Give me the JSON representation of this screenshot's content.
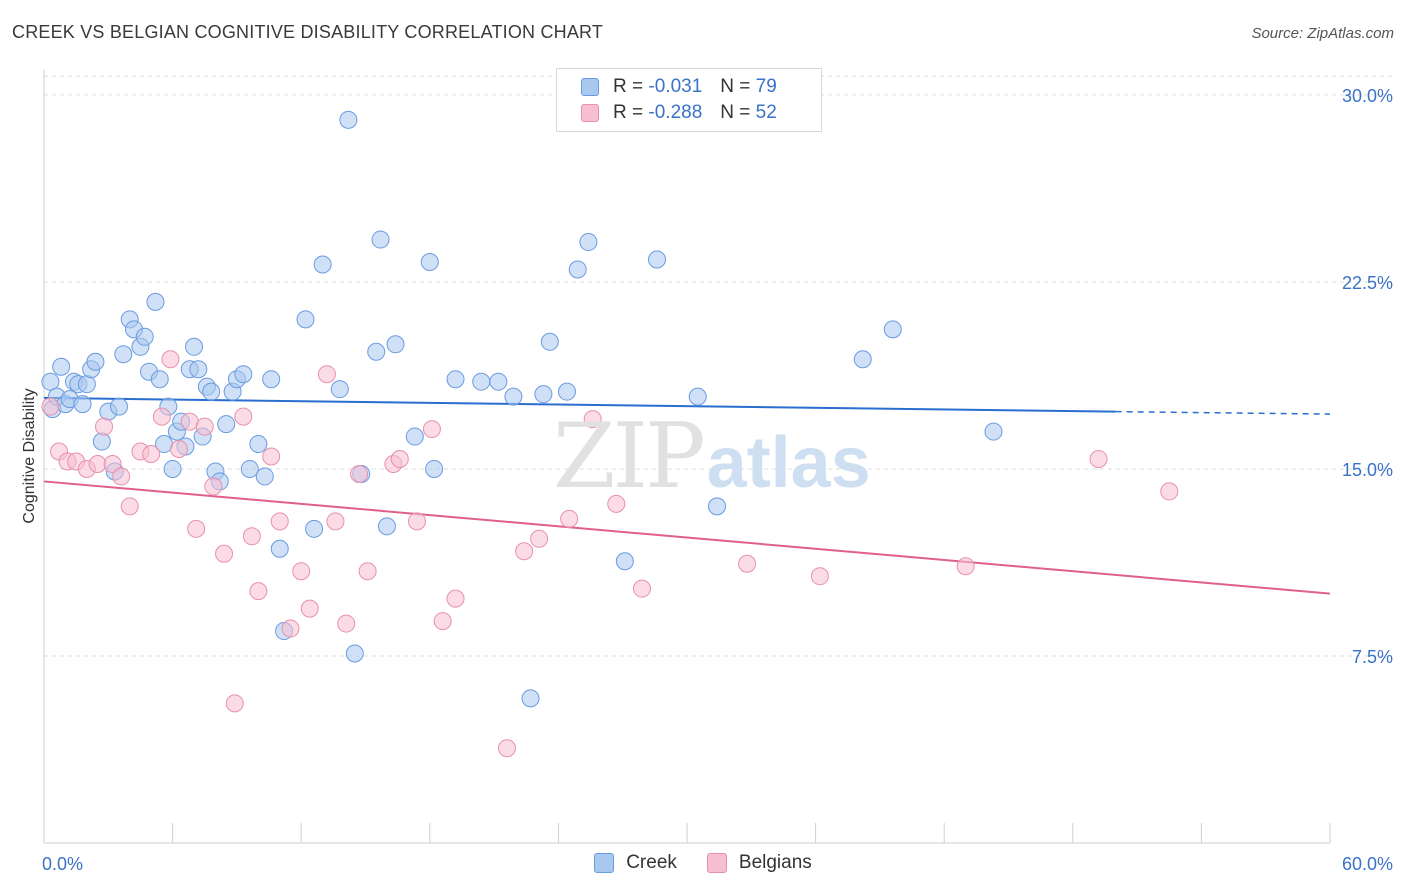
{
  "title": "CREEK VS BELGIAN COGNITIVE DISABILITY CORRELATION CHART",
  "source": "Source: ZipAtlas.com",
  "watermark": {
    "zip": "ZIP",
    "atlas": "atlas"
  },
  "legend": {
    "rows": [
      {
        "r_label": "R =",
        "r_value": "-0.031",
        "n_label": "N =",
        "n_value": "79",
        "color": "#a9c8f0",
        "stroke": "#6a9be0"
      },
      {
        "r_label": "R =",
        "r_value": "-0.288",
        "n_label": "N =",
        "n_value": "52",
        "color": "#f7bfd1",
        "stroke": "#e890ae"
      }
    ],
    "series_labels": [
      "Creek",
      "Belgians"
    ]
  },
  "chart_data": {
    "type": "scatter",
    "title": "CREEK VS BELGIAN COGNITIVE DISABILITY CORRELATION CHART",
    "xlabel": "",
    "ylabel": "Cognitive Disability",
    "xlim": [
      0,
      60
    ],
    "ylim": [
      0,
      31
    ],
    "x_tick_labels": [
      "0.0%",
      "60.0%"
    ],
    "y_ticks": [
      7.5,
      15.0,
      22.5,
      30.0
    ],
    "y_tick_labels": [
      "7.5%",
      "15.0%",
      "22.5%",
      "30.0%"
    ],
    "grid": true,
    "legend_position": "top-center",
    "colors": {
      "creek": "#a9c8f0",
      "creek_line": "#2a6fd0",
      "belgians": "#f7bfd1",
      "belgians_line": "#e0608c",
      "tick_text": "#3a72c8"
    },
    "series": [
      {
        "name": "Creek",
        "trend": {
          "x": [
            0,
            50
          ],
          "y": [
            17.85,
            17.3
          ],
          "dashed_to": [
            60,
            17.2
          ]
        },
        "points": [
          [
            0.3,
            18.5
          ],
          [
            0.4,
            17.4
          ],
          [
            0.6,
            17.9
          ],
          [
            0.8,
            19.1
          ],
          [
            1.0,
            17.6
          ],
          [
            1.2,
            17.8
          ],
          [
            1.4,
            18.5
          ],
          [
            1.6,
            18.4
          ],
          [
            1.8,
            17.6
          ],
          [
            2.0,
            18.4
          ],
          [
            2.2,
            19.0
          ],
          [
            2.4,
            19.3
          ],
          [
            2.7,
            16.1
          ],
          [
            3.0,
            17.3
          ],
          [
            3.3,
            14.9
          ],
          [
            3.5,
            17.5
          ],
          [
            3.7,
            19.6
          ],
          [
            4.0,
            21.0
          ],
          [
            4.2,
            20.6
          ],
          [
            4.5,
            19.9
          ],
          [
            4.7,
            20.3
          ],
          [
            4.9,
            18.9
          ],
          [
            5.2,
            21.7
          ],
          [
            5.4,
            18.6
          ],
          [
            5.6,
            16.0
          ],
          [
            5.8,
            17.5
          ],
          [
            6.0,
            15.0
          ],
          [
            6.2,
            16.5
          ],
          [
            6.4,
            16.9
          ],
          [
            6.6,
            15.9
          ],
          [
            6.8,
            19.0
          ],
          [
            7.0,
            19.9
          ],
          [
            7.2,
            19.0
          ],
          [
            7.4,
            16.3
          ],
          [
            7.6,
            18.3
          ],
          [
            7.8,
            18.1
          ],
          [
            8.0,
            14.9
          ],
          [
            8.2,
            14.5
          ],
          [
            8.5,
            16.8
          ],
          [
            8.8,
            18.1
          ],
          [
            9.0,
            18.6
          ],
          [
            9.3,
            18.8
          ],
          [
            9.6,
            15.0
          ],
          [
            10.0,
            16.0
          ],
          [
            10.3,
            14.7
          ],
          [
            10.6,
            18.6
          ],
          [
            11.0,
            11.8
          ],
          [
            11.2,
            8.5
          ],
          [
            12.2,
            21.0
          ],
          [
            12.6,
            12.6
          ],
          [
            13.0,
            23.2
          ],
          [
            13.8,
            18.2
          ],
          [
            14.2,
            29.0
          ],
          [
            14.5,
            7.6
          ],
          [
            14.8,
            14.8
          ],
          [
            15.5,
            19.7
          ],
          [
            15.7,
            24.2
          ],
          [
            16.0,
            12.7
          ],
          [
            16.4,
            20.0
          ],
          [
            17.3,
            16.3
          ],
          [
            18.0,
            23.3
          ],
          [
            18.2,
            15.0
          ],
          [
            19.2,
            18.6
          ],
          [
            20.4,
            18.5
          ],
          [
            21.2,
            18.5
          ],
          [
            21.9,
            17.9
          ],
          [
            22.7,
            5.8
          ],
          [
            23.3,
            18.0
          ],
          [
            23.6,
            20.1
          ],
          [
            24.4,
            18.1
          ],
          [
            24.9,
            23.0
          ],
          [
            25.4,
            24.1
          ],
          [
            27.1,
            11.3
          ],
          [
            28.6,
            23.4
          ],
          [
            30.5,
            17.9
          ],
          [
            31.4,
            13.5
          ],
          [
            38.2,
            19.4
          ],
          [
            39.6,
            20.6
          ],
          [
            44.3,
            16.5
          ]
        ]
      },
      {
        "name": "Belgians",
        "trend": {
          "x": [
            0,
            60
          ],
          "y": [
            14.5,
            10.0
          ]
        },
        "points": [
          [
            0.3,
            17.5
          ],
          [
            0.7,
            15.7
          ],
          [
            1.1,
            15.3
          ],
          [
            1.5,
            15.3
          ],
          [
            2.0,
            15.0
          ],
          [
            2.5,
            15.2
          ],
          [
            2.8,
            16.7
          ],
          [
            3.2,
            15.2
          ],
          [
            3.6,
            14.7
          ],
          [
            4.0,
            13.5
          ],
          [
            4.5,
            15.7
          ],
          [
            5.0,
            15.6
          ],
          [
            5.5,
            17.1
          ],
          [
            5.9,
            19.4
          ],
          [
            6.3,
            15.8
          ],
          [
            6.8,
            16.9
          ],
          [
            7.1,
            12.6
          ],
          [
            7.5,
            16.7
          ],
          [
            7.9,
            14.3
          ],
          [
            8.4,
            11.6
          ],
          [
            8.9,
            5.6
          ],
          [
            9.3,
            17.1
          ],
          [
            9.7,
            12.3
          ],
          [
            10.0,
            10.1
          ],
          [
            10.6,
            15.5
          ],
          [
            11.0,
            12.9
          ],
          [
            11.5,
            8.6
          ],
          [
            12.0,
            10.9
          ],
          [
            12.4,
            9.4
          ],
          [
            13.2,
            18.8
          ],
          [
            13.6,
            12.9
          ],
          [
            14.1,
            8.8
          ],
          [
            14.7,
            14.8
          ],
          [
            15.1,
            10.9
          ],
          [
            16.3,
            15.2
          ],
          [
            16.6,
            15.4
          ],
          [
            17.4,
            12.9
          ],
          [
            18.1,
            16.6
          ],
          [
            18.6,
            8.9
          ],
          [
            19.2,
            9.8
          ],
          [
            21.6,
            3.8
          ],
          [
            22.4,
            11.7
          ],
          [
            23.1,
            12.2
          ],
          [
            24.5,
            13.0
          ],
          [
            25.6,
            17.0
          ],
          [
            26.7,
            13.6
          ],
          [
            27.9,
            10.2
          ],
          [
            32.8,
            11.2
          ],
          [
            36.2,
            10.7
          ],
          [
            43.0,
            11.1
          ],
          [
            49.2,
            15.4
          ],
          [
            52.5,
            14.1
          ]
        ]
      }
    ]
  }
}
